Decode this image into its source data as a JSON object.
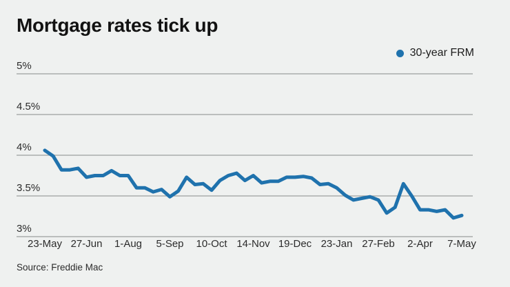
{
  "header": {
    "title": "Mortgage rates tick up"
  },
  "legend": {
    "label": "30-year FRM"
  },
  "footer": {
    "source": "Source: Freddie Mac"
  },
  "chart_data": {
    "type": "line",
    "title": "Mortgage rates tick up",
    "xlabel": "",
    "ylabel": "",
    "ylim": [
      3,
      5
    ],
    "grid": "horizontal",
    "legend_position": "top-right",
    "series": [
      {
        "name": "30-year FRM",
        "values": [
          4.06,
          3.99,
          3.82,
          3.82,
          3.84,
          3.73,
          3.75,
          3.75,
          3.81,
          3.75,
          3.75,
          3.6,
          3.6,
          3.55,
          3.58,
          3.49,
          3.56,
          3.73,
          3.64,
          3.65,
          3.57,
          3.69,
          3.75,
          3.78,
          3.69,
          3.75,
          3.66,
          3.68,
          3.68,
          3.73,
          3.73,
          3.74,
          3.72,
          3.64,
          3.65,
          3.6,
          3.51,
          3.45,
          3.47,
          3.49,
          3.45,
          3.29,
          3.36,
          3.65,
          3.5,
          3.33,
          3.33,
          3.31,
          3.33,
          3.23,
          3.26
        ]
      }
    ],
    "x_ticks": [
      {
        "index": 0,
        "label": "23-May"
      },
      {
        "index": 5,
        "label": "27-Jun"
      },
      {
        "index": 10,
        "label": "1-Aug"
      },
      {
        "index": 15,
        "label": "5-Sep"
      },
      {
        "index": 20,
        "label": "10-Oct"
      },
      {
        "index": 25,
        "label": "14-Nov"
      },
      {
        "index": 30,
        "label": "19-Dec"
      },
      {
        "index": 35,
        "label": "23-Jan"
      },
      {
        "index": 40,
        "label": "27-Feb"
      },
      {
        "index": 45,
        "label": "2-Apr"
      },
      {
        "index": 50,
        "label": "7-May"
      }
    ],
    "y_ticks": [
      {
        "value": 5,
        "label": "5%"
      },
      {
        "value": 4.5,
        "label": "4.5%"
      },
      {
        "value": 4,
        "label": "4%"
      },
      {
        "value": 3.5,
        "label": "3.5%"
      },
      {
        "value": 3,
        "label": "3%"
      }
    ],
    "colors": {
      "line": "#1f72ad",
      "grid": "#9c9f9e",
      "text": "#2b2b2b",
      "background": "#eff1f0"
    }
  }
}
